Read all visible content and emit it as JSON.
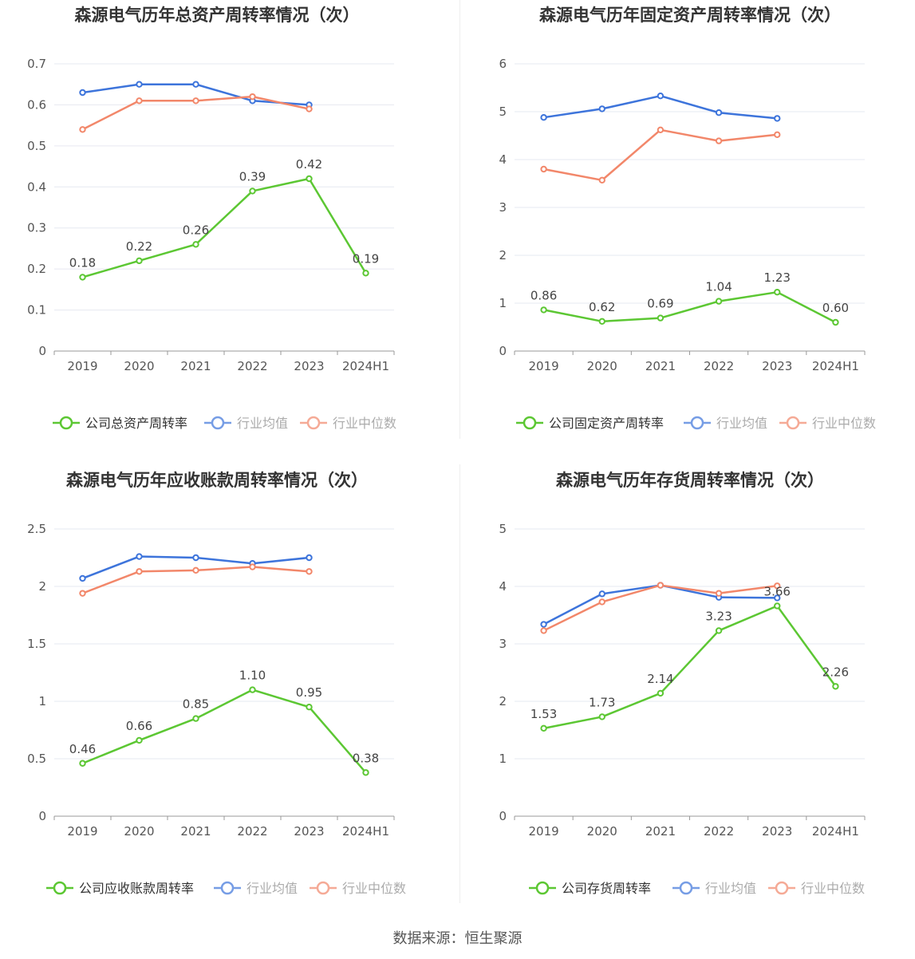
{
  "colors": {
    "company": "#5cc733",
    "avg": "#3d74db",
    "median": "#f2876a",
    "grid": "#e6e8f0",
    "axis": "#999999",
    "text": "#555555",
    "title": "#333333"
  },
  "footer": {
    "source": "数据来源：恒生聚源"
  },
  "chart_data": [
    {
      "type": "line",
      "title": "森源电气历年总资产周转率情况（次）",
      "categories": [
        "2019",
        "2020",
        "2021",
        "2022",
        "2023",
        "2024H1"
      ],
      "y_ticks": [
        "0",
        "0.1",
        "0.2",
        "0.3",
        "0.4",
        "0.5",
        "0.6",
        "0.7"
      ],
      "ylim": [
        0,
        0.7
      ],
      "grid": true,
      "legend_position": "bottom",
      "series": [
        {
          "name": "公司总资产周转率",
          "role": "company",
          "values": [
            0.18,
            0.22,
            0.26,
            0.39,
            0.42,
            0.19
          ],
          "labels": [
            "0.18",
            "0.22",
            "0.26",
            "0.39",
            "0.42",
            "0.19"
          ]
        },
        {
          "name": "行业均值",
          "role": "avg",
          "values": [
            0.63,
            0.65,
            0.65,
            0.61,
            0.6,
            null
          ]
        },
        {
          "name": "行业中位数",
          "role": "median",
          "values": [
            0.54,
            0.61,
            0.61,
            0.62,
            0.59,
            null
          ]
        }
      ]
    },
    {
      "type": "line",
      "title": "森源电气历年固定资产周转率情况（次）",
      "categories": [
        "2019",
        "2020",
        "2021",
        "2022",
        "2023",
        "2024H1"
      ],
      "y_ticks": [
        "0",
        "1",
        "2",
        "3",
        "4",
        "5",
        "6"
      ],
      "ylim": [
        0,
        6
      ],
      "grid": true,
      "legend_position": "bottom",
      "series": [
        {
          "name": "公司固定资产周转率",
          "role": "company",
          "values": [
            0.86,
            0.62,
            0.69,
            1.04,
            1.23,
            0.6
          ],
          "labels": [
            "0.86",
            "0.62",
            "0.69",
            "1.04",
            "1.23",
            "0.60"
          ]
        },
        {
          "name": "行业均值",
          "role": "avg",
          "values": [
            4.88,
            5.06,
            5.33,
            4.98,
            4.86,
            null
          ]
        },
        {
          "name": "行业中位数",
          "role": "median",
          "values": [
            3.8,
            3.57,
            4.62,
            4.39,
            4.52,
            null
          ]
        }
      ]
    },
    {
      "type": "line",
      "title": "森源电气历年应收账款周转率情况（次）",
      "categories": [
        "2019",
        "2020",
        "2021",
        "2022",
        "2023",
        "2024H1"
      ],
      "y_ticks": [
        "0",
        "0.5",
        "1",
        "1.5",
        "2",
        "2.5"
      ],
      "ylim": [
        0,
        2.5
      ],
      "grid": true,
      "legend_position": "bottom",
      "series": [
        {
          "name": "公司应收账款周转率",
          "role": "company",
          "values": [
            0.46,
            0.66,
            0.85,
            1.1,
            0.95,
            0.38
          ],
          "labels": [
            "0.46",
            "0.66",
            "0.85",
            "1.10",
            "0.95",
            "0.38"
          ]
        },
        {
          "name": "行业均值",
          "role": "avg",
          "values": [
            2.07,
            2.26,
            2.25,
            2.2,
            2.25,
            null
          ]
        },
        {
          "name": "行业中位数",
          "role": "median",
          "values": [
            1.94,
            2.13,
            2.14,
            2.17,
            2.13,
            null
          ]
        }
      ]
    },
    {
      "type": "line",
      "title": "森源电气历年存货周转率情况（次）",
      "categories": [
        "2019",
        "2020",
        "2021",
        "2022",
        "2023",
        "2024H1"
      ],
      "y_ticks": [
        "0",
        "1",
        "2",
        "3",
        "4",
        "5"
      ],
      "ylim": [
        0,
        5
      ],
      "grid": true,
      "legend_position": "bottom",
      "series": [
        {
          "name": "公司存货周转率",
          "role": "company",
          "values": [
            1.53,
            1.73,
            2.14,
            3.23,
            3.66,
            2.26
          ],
          "labels": [
            "1.53",
            "1.73",
            "2.14",
            "3.23",
            "3.66",
            "2.26"
          ]
        },
        {
          "name": "行业均值",
          "role": "avg",
          "values": [
            3.34,
            3.87,
            4.02,
            3.81,
            3.8,
            null
          ]
        },
        {
          "name": "行业中位数",
          "role": "median",
          "values": [
            3.23,
            3.73,
            4.02,
            3.88,
            4.01,
            null
          ]
        }
      ]
    }
  ]
}
